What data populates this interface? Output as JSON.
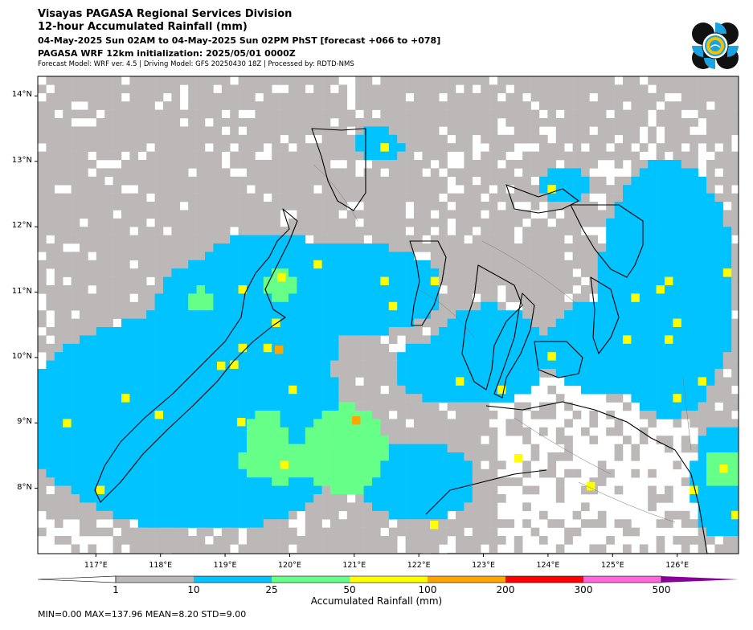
{
  "header": {
    "line1": "Visayas PAGASA Regional Services Division",
    "line2": "12-hour Accumulated Rainfall (mm)",
    "line3": "04-May-2025 Sun 02AM to 04-May-2025 Sun 02PM PhST [forecast +066 to +078]",
    "line4": "PAGASA WRF 12km initialization: 2025/05/01 0000Z",
    "line5": "Forecast Model: WRF ver. 4.5 | Driving Model: GFS 20250430 18Z | Processed by: RDTD-NMS"
  },
  "map": {
    "lat_labels": [
      "14°N",
      "13°N",
      "12°N",
      "11°N",
      "10°N",
      "9°N",
      "8°N"
    ],
    "lon_labels": [
      "117°E",
      "118°E",
      "119°E",
      "120°E",
      "121°E",
      "122°E",
      "123°E",
      "124°E",
      "125°E",
      "126°E"
    ],
    "lat_values": [
      14,
      13,
      12,
      11,
      10,
      9,
      8
    ],
    "lon_values": [
      117,
      118,
      119,
      120,
      121,
      122,
      123,
      124,
      125,
      126
    ],
    "lon_range": [
      116.1,
      126.95
    ],
    "lat_range": [
      7.0,
      14.3
    ]
  },
  "colorbar": {
    "label": "Accumulated Rainfall (mm)",
    "ticks": [
      "1",
      "10",
      "25",
      "50",
      "100",
      "200",
      "300",
      "500"
    ],
    "colors": [
      "#bcb8b8",
      "#00c3ff",
      "#66ff88",
      "#ffff00",
      "#ffa500",
      "#ff0000",
      "#ff66dd",
      "#880099"
    ],
    "under_color": "#ffffff"
  },
  "stats": {
    "text": "MIN=0.00   MAX=137.96   MEAN=8.20   STD=9.00"
  }
}
